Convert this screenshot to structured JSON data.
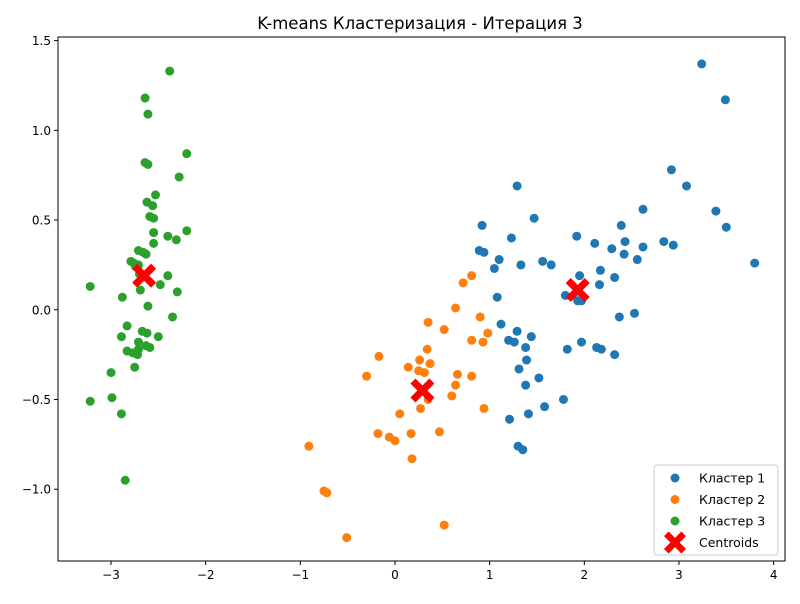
{
  "chart_data": {
    "type": "scatter",
    "title": "K-means Кластеризация - Итерация 3",
    "xlabel": "",
    "ylabel": "",
    "xlim": [
      -3.56,
      4.12
    ],
    "ylim": [
      -1.4,
      1.52
    ],
    "xticks": [
      -3,
      -2,
      -1,
      0,
      1,
      2,
      3,
      4
    ],
    "xtick_labels": [
      "−3",
      "−2",
      "−1",
      "0",
      "1",
      "2",
      "3",
      "4"
    ],
    "yticks": [
      -1.0,
      -0.5,
      0.0,
      0.5,
      1.0,
      1.5
    ],
    "ytick_labels": [
      "−1.0",
      "−0.5",
      "0.0",
      "0.5",
      "1.0",
      "1.5"
    ],
    "grid": false,
    "legend_position": "bottom-right",
    "series": [
      {
        "name": "Кластер 1",
        "color": "#1f77b4",
        "points": [
          [
            3.24,
            1.37
          ],
          [
            3.49,
            1.17
          ],
          [
            2.92,
            0.78
          ],
          [
            3.08,
            0.69
          ],
          [
            1.29,
            0.69
          ],
          [
            3.39,
            0.55
          ],
          [
            3.5,
            0.46
          ],
          [
            2.62,
            0.56
          ],
          [
            1.47,
            0.51
          ],
          [
            0.92,
            0.47
          ],
          [
            2.39,
            0.47
          ],
          [
            1.23,
            0.4
          ],
          [
            1.92,
            0.41
          ],
          [
            2.11,
            0.37
          ],
          [
            2.43,
            0.38
          ],
          [
            2.84,
            0.38
          ],
          [
            2.94,
            0.36
          ],
          [
            2.62,
            0.35
          ],
          [
            2.29,
            0.34
          ],
          [
            0.89,
            0.33
          ],
          [
            0.94,
            0.32
          ],
          [
            1.1,
            0.28
          ],
          [
            1.56,
            0.27
          ],
          [
            1.65,
            0.25
          ],
          [
            1.33,
            0.25
          ],
          [
            2.42,
            0.31
          ],
          [
            2.56,
            0.28
          ],
          [
            3.8,
            0.26
          ],
          [
            1.05,
            0.23
          ],
          [
            2.17,
            0.22
          ],
          [
            1.95,
            0.19
          ],
          [
            2.32,
            0.18
          ],
          [
            2.16,
            0.14
          ],
          [
            1.8,
            0.08
          ],
          [
            1.08,
            0.07
          ],
          [
            1.93,
            0.05
          ],
          [
            1.97,
            0.05
          ],
          [
            2.37,
            -0.04
          ],
          [
            2.53,
            -0.02
          ],
          [
            1.12,
            -0.08
          ],
          [
            1.29,
            -0.12
          ],
          [
            1.44,
            -0.15
          ],
          [
            1.2,
            -0.17
          ],
          [
            1.26,
            -0.18
          ],
          [
            1.97,
            -0.18
          ],
          [
            1.38,
            -0.21
          ],
          [
            1.82,
            -0.22
          ],
          [
            2.13,
            -0.21
          ],
          [
            2.18,
            -0.22
          ],
          [
            2.32,
            -0.25
          ],
          [
            1.39,
            -0.28
          ],
          [
            1.31,
            -0.33
          ],
          [
            1.52,
            -0.38
          ],
          [
            1.38,
            -0.42
          ],
          [
            1.78,
            -0.5
          ],
          [
            1.58,
            -0.54
          ],
          [
            1.41,
            -0.58
          ],
          [
            1.21,
            -0.61
          ],
          [
            1.3,
            -0.76
          ],
          [
            1.35,
            -0.78
          ]
        ]
      },
      {
        "name": "Кластер 2",
        "color": "#ff7f0e",
        "points": [
          [
            0.81,
            0.19
          ],
          [
            0.72,
            0.15
          ],
          [
            0.64,
            0.01
          ],
          [
            0.35,
            -0.07
          ],
          [
            0.9,
            -0.04
          ],
          [
            0.52,
            -0.11
          ],
          [
            0.98,
            -0.13
          ],
          [
            0.81,
            -0.17
          ],
          [
            0.93,
            -0.18
          ],
          [
            0.34,
            -0.22
          ],
          [
            -0.17,
            -0.26
          ],
          [
            0.26,
            -0.28
          ],
          [
            0.37,
            -0.3
          ],
          [
            0.14,
            -0.32
          ],
          [
            0.25,
            -0.34
          ],
          [
            0.31,
            -0.35
          ],
          [
            0.66,
            -0.36
          ],
          [
            0.81,
            -0.37
          ],
          [
            -0.3,
            -0.37
          ],
          [
            0.64,
            -0.42
          ],
          [
            0.6,
            -0.48
          ],
          [
            0.35,
            -0.5
          ],
          [
            0.27,
            -0.55
          ],
          [
            0.94,
            -0.55
          ],
          [
            0.05,
            -0.58
          ],
          [
            0.47,
            -0.68
          ],
          [
            0.17,
            -0.69
          ],
          [
            -0.18,
            -0.69
          ],
          [
            -0.06,
            -0.71
          ],
          [
            0.0,
            -0.73
          ],
          [
            -0.91,
            -0.76
          ],
          [
            0.18,
            -0.83
          ],
          [
            -0.75,
            -1.01
          ],
          [
            -0.72,
            -1.02
          ],
          [
            0.52,
            -1.2
          ],
          [
            -0.51,
            -1.27
          ]
        ]
      },
      {
        "name": "Кластер 3",
        "color": "#2ca02c",
        "points": [
          [
            -2.38,
            1.33
          ],
          [
            -2.64,
            1.18
          ],
          [
            -2.61,
            1.09
          ],
          [
            -2.2,
            0.87
          ],
          [
            -2.64,
            0.82
          ],
          [
            -2.61,
            0.81
          ],
          [
            -2.28,
            0.74
          ],
          [
            -2.53,
            0.64
          ],
          [
            -2.62,
            0.6
          ],
          [
            -2.56,
            0.58
          ],
          [
            -2.59,
            0.52
          ],
          [
            -2.55,
            0.51
          ],
          [
            -2.55,
            0.43
          ],
          [
            -2.2,
            0.44
          ],
          [
            -2.4,
            0.41
          ],
          [
            -2.31,
            0.39
          ],
          [
            -2.55,
            0.37
          ],
          [
            -2.71,
            0.33
          ],
          [
            -2.66,
            0.32
          ],
          [
            -2.63,
            0.31
          ],
          [
            -2.79,
            0.27
          ],
          [
            -2.76,
            0.26
          ],
          [
            -2.71,
            0.25
          ],
          [
            -2.74,
            0.24
          ],
          [
            -2.7,
            0.2
          ],
          [
            -2.4,
            0.19
          ],
          [
            -2.48,
            0.14
          ],
          [
            -3.22,
            0.13
          ],
          [
            -2.69,
            0.11
          ],
          [
            -2.3,
            0.1
          ],
          [
            -2.88,
            0.07
          ],
          [
            -2.61,
            0.02
          ],
          [
            -2.35,
            -0.04
          ],
          [
            -2.83,
            -0.09
          ],
          [
            -2.67,
            -0.12
          ],
          [
            -2.62,
            -0.13
          ],
          [
            -2.89,
            -0.15
          ],
          [
            -2.5,
            -0.15
          ],
          [
            -2.71,
            -0.18
          ],
          [
            -2.63,
            -0.2
          ],
          [
            -2.59,
            -0.21
          ],
          [
            -2.71,
            -0.22
          ],
          [
            -2.83,
            -0.23
          ],
          [
            -2.77,
            -0.24
          ],
          [
            -2.72,
            -0.25
          ],
          [
            -2.75,
            -0.32
          ],
          [
            -3.0,
            -0.35
          ],
          [
            -2.99,
            -0.49
          ],
          [
            -3.22,
            -0.51
          ],
          [
            -2.89,
            -0.58
          ],
          [
            -2.85,
            -0.95
          ]
        ]
      }
    ],
    "centroids": {
      "name": "Centroids",
      "color": "#ff0000",
      "points": [
        [
          1.93,
          0.11
        ],
        [
          0.29,
          -0.45
        ],
        [
          -2.65,
          0.19
        ]
      ]
    }
  }
}
